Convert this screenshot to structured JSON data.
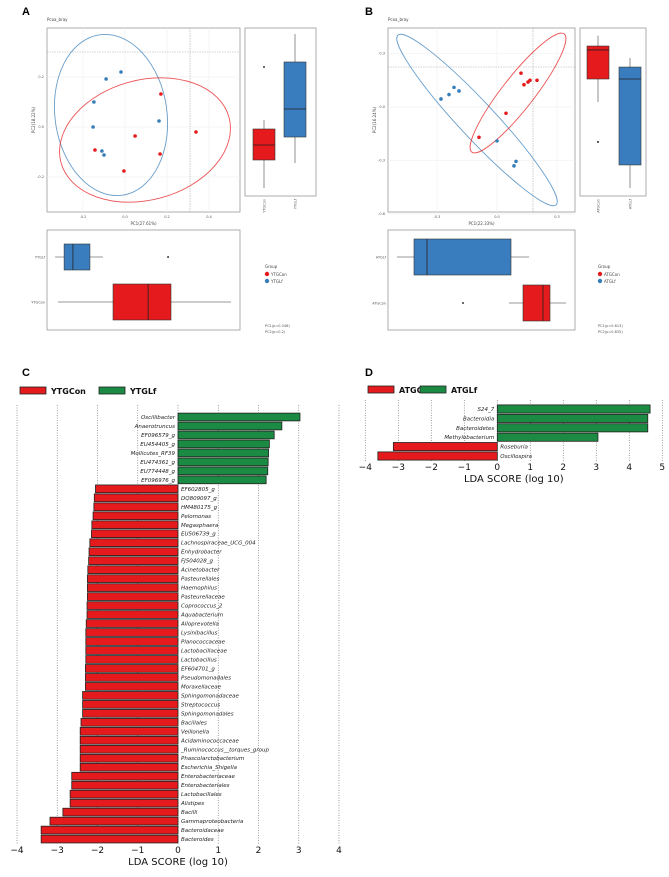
{
  "panel_labels": [
    "A",
    "B",
    "C",
    "D"
  ],
  "colors": {
    "red": "#e41a1c",
    "blue": "#377eb8",
    "green": "#1b8a43"
  },
  "chart_data": [
    {
      "type": "scatter",
      "panel": "A",
      "title": "Pcoa_bray",
      "xlabel": "PC1(27.61%)",
      "ylabel": "PC2(18.22%)",
      "xticks": [
        "-0.2",
        "0.0",
        "0.2",
        "0.4"
      ],
      "xtick_values": [
        -0.2,
        0,
        0.2,
        0.4
      ],
      "yticks": [
        "0.2",
        "0.0",
        "-0.2"
      ],
      "ytick_values": [
        0.2,
        0,
        -0.2
      ],
      "legend_title": "Group",
      "series": [
        {
          "name": "YTGCon",
          "color": "#e41a1c",
          "points": [
            [
              0.171,
              0.132
            ],
            [
              0.048,
              -0.036
            ],
            [
              0.338,
              -0.02
            ],
            [
              -0.143,
              -0.092
            ],
            [
              0.167,
              -0.108
            ],
            [
              -0.005,
              -0.176
            ]
          ]
        },
        {
          "name": "YTGLf",
          "color": "#377eb8",
          "points": [
            [
              -0.019,
              0.22
            ],
            [
              -0.09,
              0.192
            ],
            [
              -0.148,
              0.1
            ],
            [
              -0.152,
              0
            ],
            [
              0.162,
              0.024
            ],
            [
              -0.11,
              -0.096
            ],
            [
              -0.1,
              -0.112
            ]
          ]
        }
      ],
      "boxplot_pc2": [
        {
          "group": "YTGCon",
          "min": -0.244,
          "q1": -0.132,
          "median": -0.072,
          "q3": -0.008,
          "max": 0.028,
          "outliers": [
            0.24
          ]
        },
        {
          "group": "YTGLf",
          "min": -0.144,
          "q1": -0.04,
          "median": 0.072,
          "q3": 0.26,
          "max": 0.372,
          "outliers": []
        }
      ],
      "boxplot_pc1": [
        {
          "group": "YTGLf",
          "min": -0.333,
          "q1": -0.29,
          "median": -0.248,
          "q3": -0.167,
          "max": -0.105,
          "outliers": [
            0.205
          ]
        },
        {
          "group": "YTGCon",
          "min": -0.319,
          "q1": -0.057,
          "median": 0.11,
          "q3": 0.219,
          "max": 0.505,
          "outliers": []
        }
      ],
      "stats": [
        "PC1(p=0.346)",
        "PC2(p=0.2)"
      ]
    },
    {
      "type": "scatter",
      "panel": "B",
      "title": "Pcoa_bray",
      "xlabel": "PC1(22.33%)",
      "ylabel": "PC2(16.24%)",
      "xticks": [
        "-0.3",
        "0.0",
        "0.3"
      ],
      "xtick_values": [
        -0.3,
        0,
        0.3
      ],
      "yticks": [
        "0.3",
        "0.0",
        "-0.3",
        "-0.6"
      ],
      "ytick_values": [
        0.3,
        0,
        -0.3,
        -0.6
      ],
      "legend_title": "Group",
      "series": [
        {
          "name": "ATGCon",
          "color": "#e41a1c",
          "points": [
            [
              0.12,
              0.19
            ],
            [
              0.135,
              0.125
            ],
            [
              0.155,
              0.14
            ],
            [
              0.165,
              0.15
            ],
            [
              0.2,
              0.15
            ],
            [
              0.045,
              -0.035
            ],
            [
              -0.09,
              -0.17
            ]
          ]
        },
        {
          "name": "ATGLf",
          "color": "#377eb8",
          "points": [
            [
              -0.28,
              0.045
            ],
            [
              -0.24,
              0.07
            ],
            [
              -0.215,
              0.11
            ],
            [
              -0.19,
              0.09
            ],
            [
              0,
              -0.19
            ],
            [
              0.085,
              -0.33
            ],
            [
              0.095,
              -0.305
            ]
          ]
        }
      ],
      "boxplot_pc2": [
        {
          "group": "ATGCon",
          "min": 0.028,
          "q1": 0.157,
          "median": 0.32,
          "q3": 0.342,
          "max": 0.4,
          "outliers": [
            -0.196
          ]
        },
        {
          "group": "ATGLf",
          "min": -0.455,
          "q1": -0.325,
          "median": 0.157,
          "q3": 0.224,
          "max": 0.275,
          "outliers": []
        }
      ],
      "boxplot_pc1": [
        {
          "group": "ATGLf",
          "min": -0.5,
          "q1": -0.415,
          "median": -0.35,
          "q3": 0.07,
          "max": 0.16,
          "outliers": []
        },
        {
          "group": "ATGCon",
          "min": 0.06,
          "q1": 0.13,
          "median": 0.23,
          "q3": 0.265,
          "max": 0.345,
          "outliers": [
            -0.17
          ]
        }
      ],
      "stats": [
        "PC1(p=0.613)",
        "PC2(p=0.835)"
      ]
    },
    {
      "type": "bar",
      "orientation": "horizontal",
      "panel": "C",
      "xlabel": "LDA SCORE (log 10)",
      "xlim": [
        -4,
        4
      ],
      "xticks": [
        "−4",
        "−3",
        "−2",
        "−1",
        "0",
        "1",
        "2",
        "3",
        "4"
      ],
      "legend": [
        {
          "name": "YTGCon",
          "color": "#e41a1c"
        },
        {
          "name": "YTGLf",
          "color": "#1b8a43"
        }
      ],
      "categories": [
        "Oscillibacter",
        "Anaerotruncus",
        "EF096579_g",
        "EU454405_g",
        "Mollicutes_RF39",
        "EU474361_g",
        "EU774448_g",
        "EF096976_g",
        "EF602805_g",
        "DQ809097_g",
        "HM480175_g",
        "Pelomonas",
        "Megasphaera",
        "EU506739_g",
        "Lachnospiraceae_UCG_004",
        "Enhydrobacter",
        "FJ504028_g",
        "Acinetobacter",
        "Pasteurellales",
        "Haemophilus",
        "Pasteurellaceae",
        "Coprococcus_2",
        "Aquabacterium",
        "Alloprevotella",
        "Lysinibacillus",
        "Planococcaceae",
        "Lactobacillaceae",
        "Lactobacillus",
        "EF604701_g",
        "Pseudomonadales",
        "Moraxellaceae",
        "Sphingomonadaceae",
        "Streptococcus",
        "Sphingomonadales",
        "Bacillales",
        "Veillonella",
        "Acidaminococcaceae",
        "_Ruminococcus__torques_group",
        "Phascolarctobacterium",
        "Escherichia_Shigella",
        "Enterobacteriaceae",
        "Enterobacteriales",
        "Lactobacillales",
        "Alistipes",
        "Bacilli",
        "Gammaproteobacteria",
        "Bacteroidaceae",
        "Bacteroides"
      ],
      "values": [
        3.03,
        2.58,
        2.39,
        2.27,
        2.25,
        2.24,
        2.23,
        2.19,
        -2.05,
        -2.08,
        -2.09,
        -2.11,
        -2.14,
        -2.15,
        -2.19,
        -2.21,
        -2.22,
        -2.24,
        -2.25,
        -2.25,
        -2.25,
        -2.26,
        -2.26,
        -2.28,
        -2.29,
        -2.29,
        -2.29,
        -2.29,
        -2.3,
        -2.3,
        -2.3,
        -2.37,
        -2.37,
        -2.37,
        -2.41,
        -2.43,
        -2.43,
        -2.43,
        -2.43,
        -2.43,
        -2.64,
        -2.64,
        -2.68,
        -2.68,
        -2.86,
        -3.18,
        -3.4,
        -3.4
      ]
    },
    {
      "type": "bar",
      "orientation": "horizontal",
      "panel": "D",
      "xlabel": "LDA SCORE (log 10)",
      "xlim": [
        -4,
        5
      ],
      "xticks": [
        "−4",
        "−3",
        "−2",
        "−1",
        "0",
        "1",
        "2",
        "3",
        "4",
        "5"
      ],
      "legend": [
        {
          "name": "ATGCon",
          "color": "#e41a1c"
        },
        {
          "name": "ATGLf",
          "color": "#1b8a43"
        }
      ],
      "categories": [
        "S24_7",
        "Bacteroidia",
        "Bacteroidetes",
        "Methylobacterium",
        "Roseburia",
        "Oscillospira"
      ],
      "values": [
        4.63,
        4.56,
        4.56,
        3.05,
        -3.15,
        -3.62
      ]
    }
  ]
}
